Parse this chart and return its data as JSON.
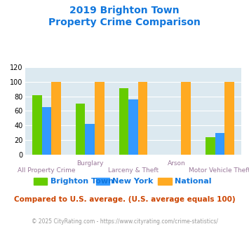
{
  "title_line1": "2019 Brighton Town",
  "title_line2": "Property Crime Comparison",
  "series": {
    "Brighton Town": [
      81,
      70,
      91,
      0,
      24
    ],
    "New York": [
      65,
      42,
      76,
      0,
      30
    ],
    "National": [
      100,
      100,
      100,
      100,
      100
    ]
  },
  "colors": {
    "Brighton Town": "#66cc00",
    "New York": "#3399ff",
    "National": "#ffaa22"
  },
  "ylim": [
    0,
    120
  ],
  "yticks": [
    0,
    20,
    40,
    60,
    80,
    100,
    120
  ],
  "background_color": "#dce9f0",
  "title_color": "#1177dd",
  "row1_labels": [
    "",
    "Burglary",
    "",
    "Arson",
    ""
  ],
  "row2_labels": [
    "All Property Crime",
    "",
    "Larceny & Theft",
    "",
    "Motor Vehicle Theft"
  ],
  "label_color": "#997799",
  "note": "Compared to U.S. average. (U.S. average equals 100)",
  "footer": "© 2025 CityRating.com - https://www.cityrating.com/crime-statistics/",
  "note_color": "#cc4400",
  "footer_color": "#999999",
  "bar_width": 0.22
}
